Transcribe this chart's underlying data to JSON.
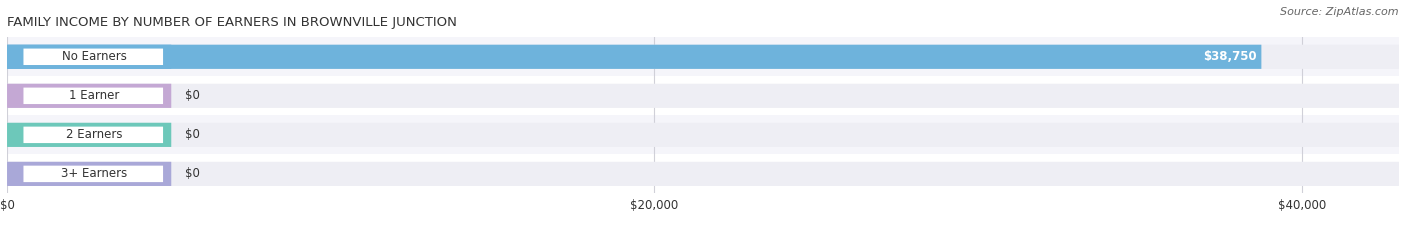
{
  "title": "FAMILY INCOME BY NUMBER OF EARNERS IN BROWNVILLE JUNCTION",
  "source": "Source: ZipAtlas.com",
  "categories": [
    "No Earners",
    "1 Earner",
    "2 Earners",
    "3+ Earners"
  ],
  "values": [
    38750,
    0,
    0,
    0
  ],
  "bar_colors": [
    "#6eb3dc",
    "#c4a8d4",
    "#6dc8ba",
    "#a9a8d8"
  ],
  "bar_bg_color": "#eeeef4",
  "value_labels": [
    "$38,750",
    "$0",
    "$0",
    "$0"
  ],
  "xlim": [
    0,
    43000
  ],
  "xticks": [
    0,
    20000,
    40000
  ],
  "xtick_labels": [
    "$0",
    "$20,000",
    "$40,000"
  ],
  "figsize": [
    14.06,
    2.33
  ],
  "dpi": 100,
  "title_fontsize": 9.5,
  "label_fontsize": 8.5,
  "tick_fontsize": 8.5,
  "source_fontsize": 8,
  "bar_height": 0.62,
  "label_color": "#333333",
  "title_color": "#333333",
  "source_color": "#666666",
  "value_label_color_on_bar": "#ffffff",
  "value_label_color_off_bar": "#333333",
  "grid_color": "#d0d0d8",
  "background_color": "#ffffff",
  "row_bg_even": "#f5f5fa",
  "row_bg_odd": "#ffffff"
}
